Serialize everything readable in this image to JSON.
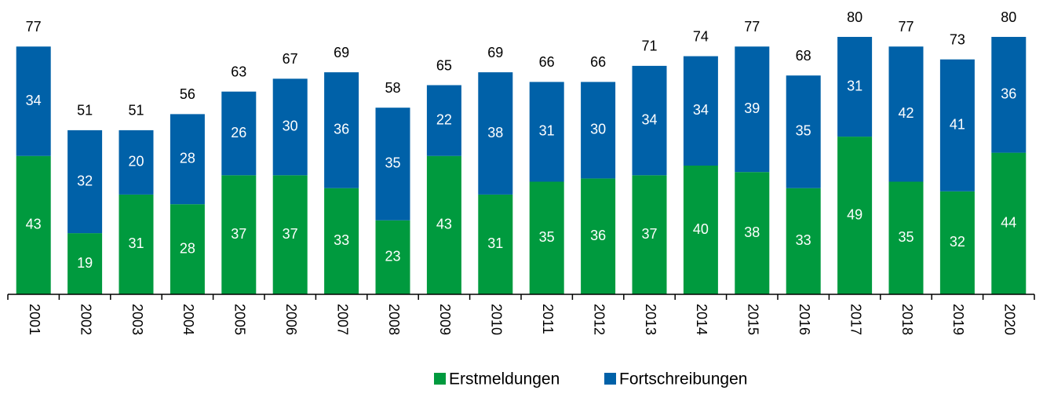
{
  "chart_data": {
    "type": "stacked-bar",
    "categories": [
      "2001",
      "2002",
      "2003",
      "2004",
      "2005",
      "2006",
      "2007",
      "2008",
      "2009",
      "2010",
      "2011",
      "2012",
      "2013",
      "2014",
      "2015",
      "2016",
      "2017",
      "2018",
      "2019",
      "2020"
    ],
    "series": [
      {
        "name": "Erstmeldungen",
        "color": "#009a3e",
        "values": [
          43,
          19,
          31,
          28,
          37,
          37,
          33,
          23,
          43,
          31,
          35,
          36,
          37,
          40,
          38,
          33,
          49,
          35,
          32,
          44
        ]
      },
      {
        "name": "Fortschreibungen",
        "color": "#0061a8",
        "values": [
          34,
          32,
          20,
          28,
          26,
          30,
          36,
          35,
          22,
          38,
          31,
          30,
          34,
          34,
          39,
          35,
          31,
          42,
          41,
          36
        ]
      }
    ],
    "totals": [
      77,
      51,
      51,
      56,
      63,
      67,
      69,
      58,
      65,
      69,
      66,
      66,
      71,
      74,
      77,
      68,
      80,
      77,
      73,
      80
    ],
    "ylim": [
      0,
      80
    ],
    "legend": "bottom"
  }
}
